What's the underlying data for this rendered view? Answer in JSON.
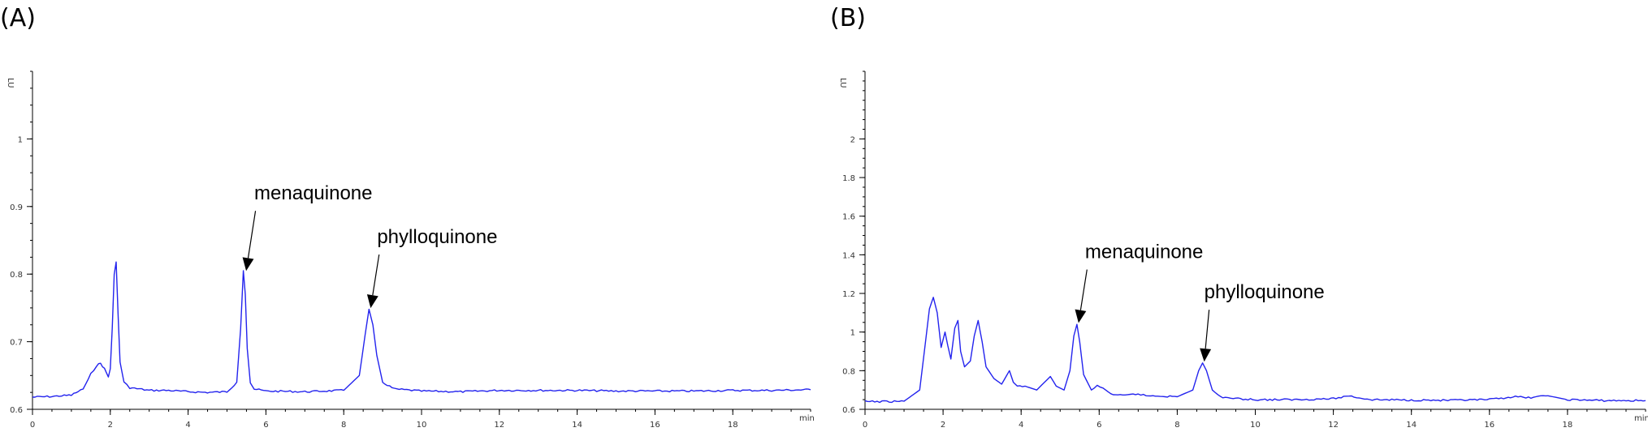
{
  "chart_data": [
    {
      "type": "line",
      "panel_label": "(A)",
      "y_unit": "LU",
      "x_unit": "min",
      "xlim": [
        0,
        20
      ],
      "ylim": [
        0.6,
        1.1
      ],
      "x_ticks": [
        0,
        2,
        4,
        6,
        8,
        10,
        12,
        14,
        16,
        18
      ],
      "y_ticks": [
        0.6,
        0.7,
        0.8,
        0.9,
        1
      ],
      "x_tick_labels": [
        "0",
        "2",
        "4",
        "6",
        "8",
        "10",
        "12",
        "14",
        "16",
        "18"
      ],
      "y_tick_labels": [
        "0.6",
        "0.7",
        "0.8",
        "0.9",
        "1"
      ],
      "line_color": "#2323ee",
      "series": [
        {
          "x": [
            0,
            0.5,
            1.0,
            1.3,
            1.5,
            1.65,
            1.75,
            1.85,
            1.95,
            2.0,
            2.05,
            2.1,
            2.15,
            2.2,
            2.25,
            2.35,
            2.5,
            3.0,
            3.5,
            4.0,
            4.5,
            5.0,
            5.25,
            5.35,
            5.42,
            5.47,
            5.52,
            5.6,
            5.7,
            6.0,
            7.0,
            8.0,
            8.4,
            8.55,
            8.65,
            8.75,
            8.85,
            9.0,
            9.3,
            10,
            11,
            12,
            13,
            14,
            15,
            16,
            17,
            18,
            19,
            20
          ],
          "y": [
            0.618,
            0.619,
            0.621,
            0.63,
            0.652,
            0.665,
            0.668,
            0.66,
            0.648,
            0.66,
            0.72,
            0.8,
            0.818,
            0.74,
            0.67,
            0.64,
            0.632,
            0.628,
            0.628,
            0.626,
            0.625,
            0.626,
            0.64,
            0.72,
            0.805,
            0.77,
            0.69,
            0.64,
            0.63,
            0.627,
            0.626,
            0.628,
            0.65,
            0.71,
            0.748,
            0.725,
            0.68,
            0.64,
            0.63,
            0.627,
            0.626,
            0.628,
            0.628,
            0.628,
            0.627,
            0.627,
            0.627,
            0.628,
            0.628,
            0.629
          ]
        }
      ],
      "annotations": [
        {
          "text": "menaquinone",
          "x": 5.45,
          "y": 0.8
        },
        {
          "text": "phylloquinone",
          "x": 8.65,
          "y": 0.745
        }
      ]
    },
    {
      "type": "line",
      "panel_label": "(B)",
      "y_unit": "LU",
      "x_unit": "min",
      "xlim": [
        0,
        20
      ],
      "ylim": [
        0.6,
        2.35
      ],
      "x_ticks": [
        0,
        2,
        4,
        6,
        8,
        10,
        12,
        14,
        16,
        18
      ],
      "y_ticks": [
        0.6,
        0.8,
        1,
        1.2,
        1.4,
        1.6,
        1.8,
        2
      ],
      "x_tick_labels": [
        "0",
        "2",
        "4",
        "6",
        "8",
        "10",
        "12",
        "14",
        "16",
        "18"
      ],
      "y_tick_labels": [
        "0.6",
        "0.8",
        "1",
        "1.2",
        "1.4",
        "1.6",
        "1.8",
        "2"
      ],
      "line_color": "#2323ee",
      "series": [
        {
          "x": [
            0,
            0.5,
            1.0,
            1.4,
            1.55,
            1.65,
            1.75,
            1.85,
            1.95,
            2.05,
            2.12,
            2.2,
            2.3,
            2.38,
            2.45,
            2.55,
            2.7,
            2.8,
            2.9,
            3.0,
            3.1,
            3.3,
            3.5,
            3.7,
            3.8,
            3.9,
            4.1,
            4.4,
            4.6,
            4.75,
            4.9,
            5.1,
            5.25,
            5.35,
            5.43,
            5.5,
            5.6,
            5.8,
            5.95,
            6.1,
            6.3,
            6.6,
            7.0,
            7.2,
            7.5,
            8.0,
            8.4,
            8.55,
            8.65,
            8.75,
            8.9,
            9.1,
            9.5,
            10,
            11,
            12,
            12.4,
            12.8,
            13,
            14,
            15,
            16,
            16.6,
            17,
            17.5,
            18,
            19,
            20
          ],
          "y": [
            0.64,
            0.64,
            0.642,
            0.7,
            0.95,
            1.12,
            1.18,
            1.1,
            0.92,
            1.0,
            0.93,
            0.86,
            1.02,
            1.06,
            0.9,
            0.82,
            0.85,
            0.98,
            1.06,
            0.95,
            0.82,
            0.76,
            0.73,
            0.8,
            0.74,
            0.72,
            0.72,
            0.7,
            0.74,
            0.77,
            0.72,
            0.7,
            0.8,
            0.98,
            1.04,
            0.95,
            0.78,
            0.7,
            0.72,
            0.71,
            0.68,
            0.67,
            0.68,
            0.67,
            0.67,
            0.665,
            0.7,
            0.8,
            0.84,
            0.8,
            0.7,
            0.665,
            0.655,
            0.65,
            0.65,
            0.655,
            0.67,
            0.655,
            0.65,
            0.648,
            0.646,
            0.65,
            0.665,
            0.66,
            0.67,
            0.65,
            0.645,
            0.645
          ]
        }
      ],
      "annotations": [
        {
          "text": "menaquinone",
          "x": 5.43,
          "y": 1.03
        },
        {
          "text": "phylloquinone",
          "x": 8.65,
          "y": 0.83
        }
      ]
    }
  ]
}
